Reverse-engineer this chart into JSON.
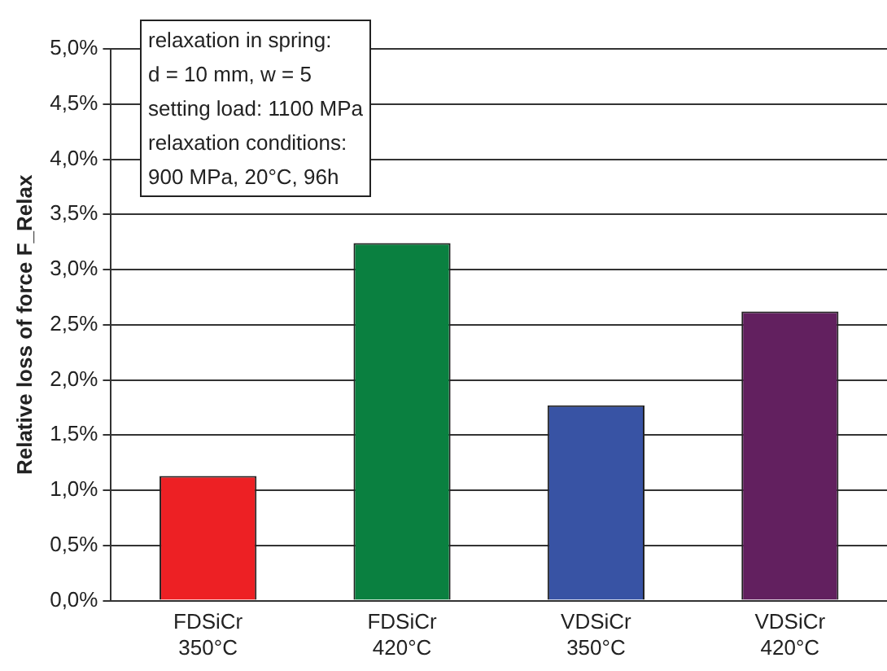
{
  "chart_data": {
    "type": "bar",
    "ylabel": "Relative loss of force F_Relax",
    "categories": [
      "FDSiCr 350°C",
      "FDSiCr 420°C",
      "VDSiCr 350°C",
      "VDSiCr 420°C"
    ],
    "values": [
      1.13,
      3.24,
      1.77,
      2.62
    ],
    "colors": [
      "#ed2024",
      "#0a8040",
      "#3853a4",
      "#62205f"
    ],
    "ylim": [
      0,
      5
    ],
    "yticks": [
      {
        "value": 0,
        "label": "0,0%"
      },
      {
        "value": 0.5,
        "label": "0,5%"
      },
      {
        "value": 1,
        "label": "1,0%"
      },
      {
        "value": 1.5,
        "label": "1,5%"
      },
      {
        "value": 2,
        "label": "2,0%"
      },
      {
        "value": 2.5,
        "label": "2,5%"
      },
      {
        "value": 3,
        "label": "3,0%"
      },
      {
        "value": 3.5,
        "label": "3,5%"
      },
      {
        "value": 4,
        "label": "4,0%"
      },
      {
        "value": 4.5,
        "label": "4,5%"
      },
      {
        "value": 5,
        "label": "5,0%"
      }
    ],
    "grid": "y",
    "annotations": [
      "relaxation in spring:",
      "d = 10 mm, w = 5",
      "setting load: 1100 MPa",
      "relaxation conditions:",
      "900 MPa, 20°C, 96h"
    ]
  }
}
